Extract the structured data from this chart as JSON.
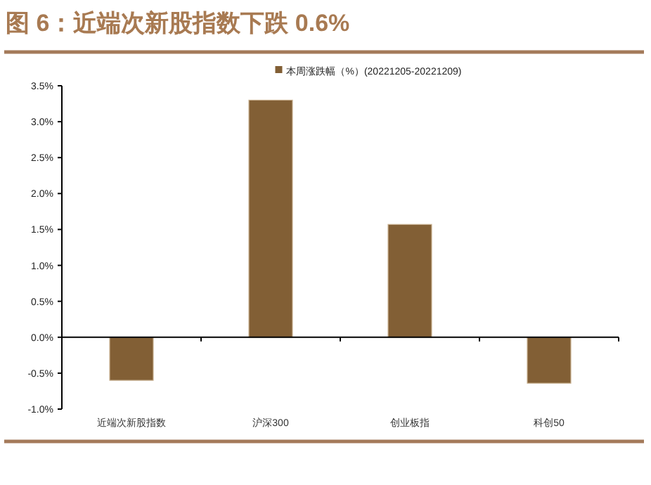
{
  "chart_data": {
    "type": "bar",
    "title": "图 6：近端次新股指数下跌 0.6%",
    "categories": [
      "近端次新股指数",
      "沪深300",
      "创业板指",
      "科创50"
    ],
    "series": [
      {
        "name": "本周涨跌幅（%）(20221205-20221209)",
        "color": "#825f35",
        "values": [
          -0.6,
          3.3,
          1.57,
          -0.64
        ]
      }
    ],
    "ylim": [
      -1.0,
      3.5
    ],
    "yticks": [
      {
        "value": -1.0,
        "label": "-1.0%"
      },
      {
        "value": -0.5,
        "label": "-0.5%"
      },
      {
        "value": 0,
        "label": "0.0%"
      },
      {
        "value": 0.5,
        "label": "0.5%"
      },
      {
        "value": 1.0,
        "label": "1.0%"
      },
      {
        "value": 1.5,
        "label": "1.5%"
      },
      {
        "value": 2.0,
        "label": "2.0%"
      },
      {
        "value": 2.5,
        "label": "2.5%"
      },
      {
        "value": 3.0,
        "label": "3.0%"
      },
      {
        "value": 3.5,
        "label": "3.5%"
      }
    ],
    "legend": "top"
  }
}
